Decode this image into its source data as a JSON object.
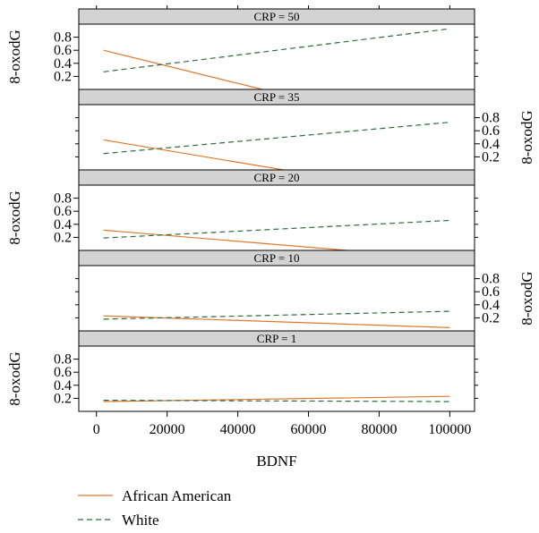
{
  "chart_data": {
    "type": "line",
    "xlabel": "BDNF",
    "ylabel": "8-oxodG",
    "xlim": [
      -5000,
      107000
    ],
    "ylim": [
      0,
      1.0
    ],
    "x_ticks": [
      0,
      20000,
      40000,
      60000,
      80000,
      100000
    ],
    "x_tick_labels": [
      "0",
      "20000",
      "40000",
      "60000",
      "80000",
      "100000"
    ],
    "y_ticks": [
      0.2,
      0.4,
      0.6,
      0.8
    ],
    "y_tick_labels": [
      "0.2",
      "0.4",
      "0.6",
      "0.8"
    ],
    "legend": {
      "placement": "bottom-left"
    },
    "series_styles": [
      {
        "name": "African American",
        "color": "#e0782d",
        "dash": "solid"
      },
      {
        "name": "White",
        "color": "#2e6b3f",
        "dash": "dashed"
      }
    ],
    "panels": [
      {
        "strip": "CRP = 50",
        "series": [
          {
            "name": "African American",
            "x": [
              2000,
              47000
            ],
            "y": [
              0.6,
              0.0
            ]
          },
          {
            "name": "White",
            "x": [
              2000,
              100000
            ],
            "y": [
              0.27,
              0.93
            ]
          }
        ]
      },
      {
        "strip": "CRP = 35",
        "series": [
          {
            "name": "African American",
            "x": [
              2000,
              53000
            ],
            "y": [
              0.46,
              0.0
            ]
          },
          {
            "name": "White",
            "x": [
              2000,
              100000
            ],
            "y": [
              0.25,
              0.73
            ]
          }
        ]
      },
      {
        "strip": "CRP = 20",
        "series": [
          {
            "name": "African American",
            "x": [
              2000,
              71000
            ],
            "y": [
              0.31,
              0.0
            ]
          },
          {
            "name": "White",
            "x": [
              2000,
              100000
            ],
            "y": [
              0.19,
              0.46
            ]
          }
        ]
      },
      {
        "strip": "CRP = 10",
        "series": [
          {
            "name": "African American",
            "x": [
              2000,
              100000
            ],
            "y": [
              0.23,
              0.05
            ]
          },
          {
            "name": "White",
            "x": [
              2000,
              100000
            ],
            "y": [
              0.18,
              0.3
            ]
          }
        ]
      },
      {
        "strip": "CRP = 1",
        "series": [
          {
            "name": "African American",
            "x": [
              2000,
              100000
            ],
            "y": [
              0.15,
              0.23
            ]
          },
          {
            "name": "White",
            "x": [
              2000,
              100000
            ],
            "y": [
              0.17,
              0.15
            ]
          }
        ]
      }
    ]
  }
}
